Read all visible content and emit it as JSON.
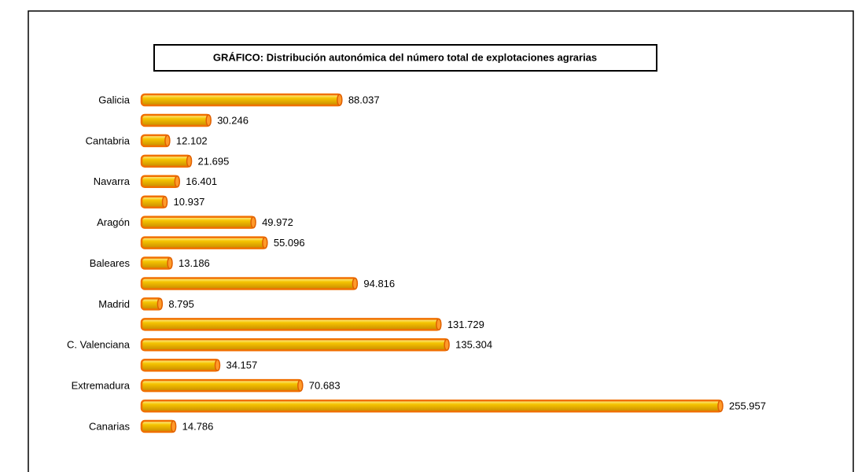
{
  "chart_data": {
    "type": "bar",
    "orientation": "horizontal",
    "title": "GRÁFICO: Distribución autonómica del número total de explotaciones agrarias",
    "categories": [
      "Galicia",
      null,
      "Cantabria",
      null,
      "Navarra",
      null,
      "Aragón",
      null,
      "Baleares",
      null,
      "Madrid",
      null,
      "C. Valenciana",
      null,
      "Extremadura",
      null,
      "Canarias"
    ],
    "values": [
      88037,
      30246,
      12102,
      21695,
      16401,
      10937,
      49972,
      55096,
      13186,
      94816,
      8795,
      131729,
      135304,
      34157,
      70683,
      255957,
      14786
    ],
    "value_labels": [
      "88.037",
      "30.246",
      "12.102",
      "21.695",
      "16.401",
      "10.937",
      "49.972",
      "55.096",
      "13.186",
      "94.816",
      "8.795",
      "131.729",
      "135.304",
      "34.157",
      "70.683",
      "255.957",
      "14.786"
    ],
    "color": "#f5c400"
  }
}
